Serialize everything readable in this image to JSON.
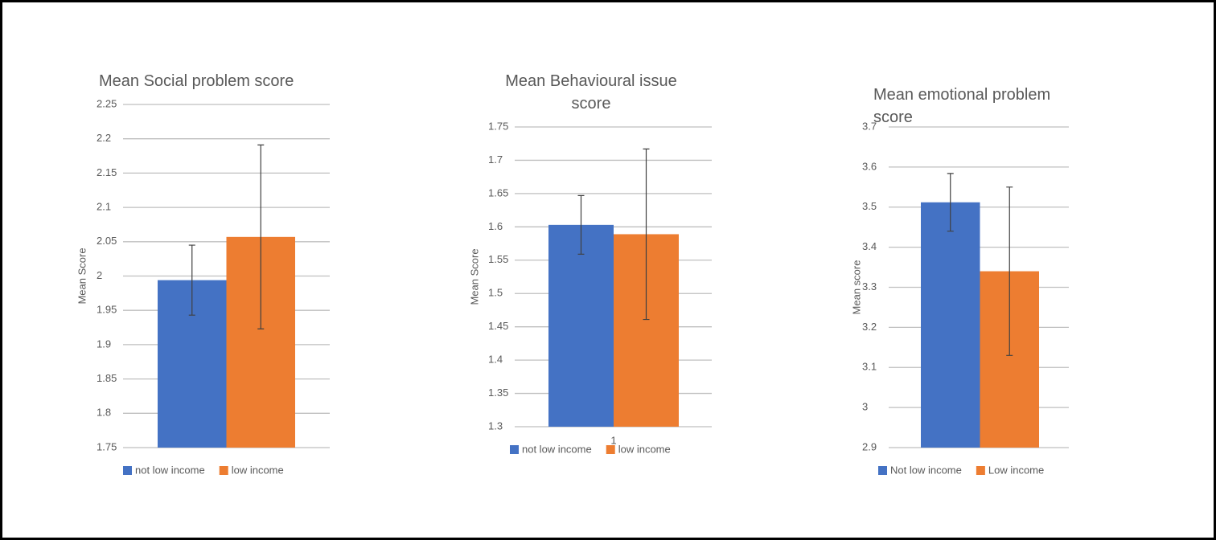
{
  "chart_data": [
    {
      "type": "bar",
      "title": "Mean Social problem score",
      "y_label": "Mean Score",
      "categories": [
        null
      ],
      "series": [
        {
          "name": "not low income",
          "color": "#4472c4",
          "values": [
            1.994
          ],
          "errors": [
            0.051
          ]
        },
        {
          "name": "low income",
          "color": "#ed7d31",
          "values": [
            2.057
          ],
          "errors": [
            0.134
          ]
        }
      ],
      "ylim": [
        1.75,
        2.25
      ],
      "yticks": [
        1.75,
        1.8,
        1.85,
        1.9,
        1.95,
        2,
        2.05,
        2.1,
        2.15,
        2.2,
        2.25
      ],
      "grid": true,
      "legend": "bottom"
    },
    {
      "type": "bar",
      "title": "Mean Behavioural issue score",
      "y_label": "Mean Score",
      "categories": [
        "1"
      ],
      "series": [
        {
          "name": "not low income",
          "color": "#4472c4",
          "values": [
            1.603
          ],
          "errors": [
            0.044
          ]
        },
        {
          "name": "low income",
          "color": "#ed7d31",
          "values": [
            1.589
          ],
          "errors": [
            0.128
          ]
        }
      ],
      "ylim": [
        1.3,
        1.75
      ],
      "yticks": [
        1.3,
        1.35,
        1.4,
        1.45,
        1.5,
        1.55,
        1.6,
        1.65,
        1.7,
        1.75
      ],
      "grid": true,
      "legend": "bottom"
    },
    {
      "type": "bar",
      "title": "Mean emotional problem score",
      "y_label": "Mean score",
      "categories": [
        null
      ],
      "series": [
        {
          "name": "Not low income",
          "color": "#4472c4",
          "values": [
            3.512
          ],
          "errors": [
            0.072
          ]
        },
        {
          "name": "Low income",
          "color": "#ed7d31",
          "values": [
            3.34
          ],
          "errors": [
            0.21
          ]
        }
      ],
      "ylim": [
        2.9,
        3.7
      ],
      "yticks": [
        2.9,
        3,
        3.1,
        3.2,
        3.3,
        3.4,
        3.5,
        3.6,
        3.7
      ],
      "grid": true,
      "legend": "bottom"
    }
  ]
}
